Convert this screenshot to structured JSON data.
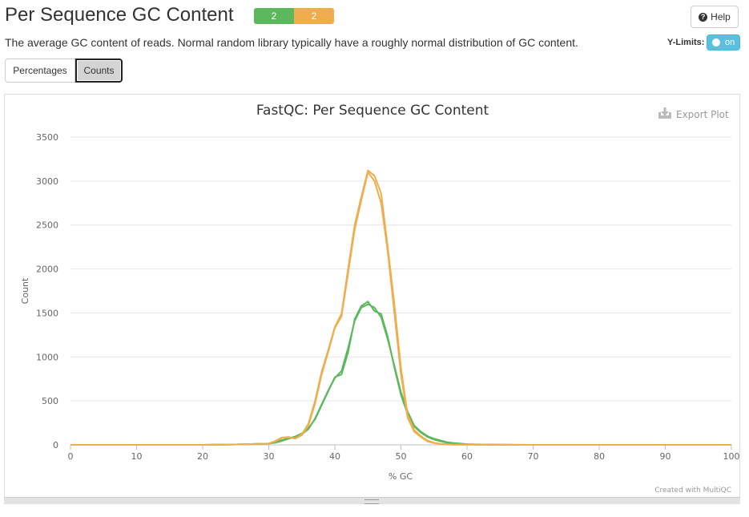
{
  "header": {
    "title": "Per Sequence GC Content",
    "status_badges": [
      {
        "label": "2",
        "color": "#5cb85c"
      },
      {
        "label": "2",
        "color": "#f0ad4e"
      }
    ],
    "help_label": "Help",
    "description": "The average GC content of reads. Normal random library typically have a roughly normal distribution of GC content.",
    "ylimits_label": "Y-Limits:",
    "ylimits_toggle": "on"
  },
  "tabs": [
    {
      "label": "Percentages",
      "active": false
    },
    {
      "label": "Counts",
      "active": true
    }
  ],
  "plot": {
    "export_label": "Export Plot",
    "credit": "Created with MultiQC"
  },
  "chart_data": {
    "type": "line",
    "title": "FastQC: Per Sequence GC Content",
    "xlabel": "% GC",
    "ylabel": "Count",
    "xlim": [
      0,
      100
    ],
    "ylim": [
      0,
      3500
    ],
    "xticks": [
      0,
      10,
      20,
      30,
      40,
      50,
      60,
      70,
      80,
      90,
      100
    ],
    "yticks": [
      0,
      500,
      1000,
      1500,
      2000,
      2500,
      3000,
      3500
    ],
    "grid": true,
    "series": [
      {
        "color": "#5cb85c",
        "x": [
          0,
          20,
          25,
          28,
          30,
          31,
          32,
          33,
          34,
          35,
          36,
          37,
          38,
          39,
          40,
          41,
          42,
          43,
          44,
          45,
          46,
          47,
          48,
          49,
          50,
          51,
          52,
          53,
          54,
          55,
          56,
          57,
          58,
          60,
          62,
          65,
          70,
          80,
          100
        ],
        "y": [
          0,
          0,
          5,
          10,
          15,
          25,
          45,
          70,
          90,
          120,
          180,
          300,
          460,
          620,
          760,
          840,
          1100,
          1410,
          1560,
          1600,
          1560,
          1450,
          1200,
          900,
          600,
          380,
          220,
          150,
          100,
          70,
          50,
          30,
          20,
          8,
          4,
          2,
          0,
          0,
          0
        ]
      },
      {
        "color": "#5cb85c",
        "x": [
          0,
          20,
          25,
          28,
          30,
          31,
          32,
          33,
          34,
          35,
          36,
          37,
          38,
          39,
          40,
          41,
          42,
          43,
          44,
          45,
          46,
          47,
          48,
          49,
          50,
          51,
          52,
          53,
          54,
          55,
          56,
          57,
          58,
          60,
          62,
          65,
          70,
          80,
          100
        ],
        "y": [
          0,
          0,
          5,
          10,
          15,
          30,
          55,
          75,
          95,
          130,
          190,
          290,
          450,
          610,
          770,
          800,
          1050,
          1430,
          1580,
          1630,
          1520,
          1490,
          1230,
          880,
          570,
          350,
          210,
          140,
          90,
          60,
          40,
          25,
          15,
          6,
          3,
          1,
          0,
          0,
          0
        ]
      },
      {
        "color": "#f0ad4e",
        "x": [
          0,
          20,
          25,
          28,
          30,
          31,
          32,
          33,
          34,
          35,
          36,
          37,
          38,
          39,
          40,
          41,
          42,
          43,
          44,
          45,
          46,
          47,
          48,
          49,
          50,
          51,
          52,
          53,
          54,
          55,
          56,
          57,
          58,
          60,
          62,
          65,
          70,
          80,
          100
        ],
        "y": [
          0,
          0,
          5,
          10,
          15,
          40,
          80,
          90,
          70,
          110,
          220,
          470,
          800,
          1060,
          1330,
          1460,
          1950,
          2450,
          2780,
          3100,
          3000,
          2750,
          2200,
          1500,
          800,
          310,
          150,
          90,
          40,
          20,
          10,
          5,
          3,
          2,
          1,
          0,
          0,
          0,
          0
        ]
      },
      {
        "color": "#f0ad4e",
        "x": [
          0,
          20,
          25,
          28,
          30,
          31,
          32,
          33,
          34,
          35,
          36,
          37,
          38,
          39,
          40,
          41,
          42,
          43,
          44,
          45,
          46,
          47,
          48,
          49,
          50,
          51,
          52,
          53,
          54,
          55,
          56,
          57,
          58,
          60,
          62,
          65,
          70,
          80,
          100
        ],
        "y": [
          0,
          0,
          5,
          10,
          15,
          45,
          85,
          85,
          75,
          120,
          240,
          500,
          830,
          1080,
          1340,
          1490,
          2000,
          2500,
          2820,
          3120,
          3060,
          2860,
          2250,
          1600,
          880,
          340,
          170,
          100,
          50,
          25,
          12,
          6,
          3,
          2,
          1,
          0,
          0,
          0,
          0
        ]
      }
    ]
  }
}
